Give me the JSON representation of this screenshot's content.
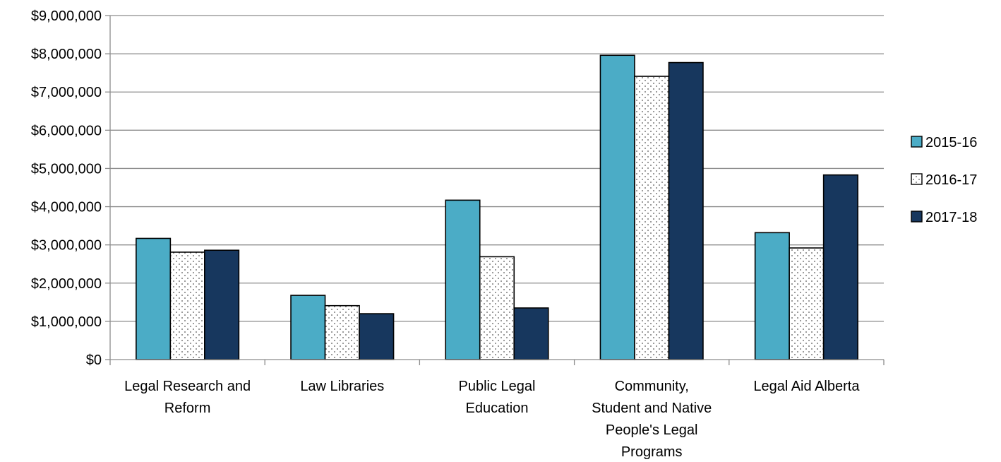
{
  "chart_data": {
    "type": "bar",
    "title": "",
    "xlabel": "",
    "ylabel": "",
    "ylim": [
      0,
      9000000
    ],
    "y_ticks": [
      0,
      1000000,
      2000000,
      3000000,
      4000000,
      5000000,
      6000000,
      7000000,
      8000000,
      9000000
    ],
    "y_tick_labels": [
      "$0",
      "$1,000,000",
      "$2,000,000",
      "$3,000,000",
      "$4,000,000",
      "$5,000,000",
      "$6,000,000",
      "$7,000,000",
      "$8,000,000",
      "$9,000,000"
    ],
    "grid": true,
    "legend_position": "right",
    "categories": [
      "Legal Research and Reform",
      "Law Libraries",
      "Public Legal Education",
      "Community, Student and Native People's Legal Programs",
      "Legal Aid Alberta"
    ],
    "category_label_lines": [
      [
        "Legal Research and",
        "Reform"
      ],
      [
        "Law Libraries"
      ],
      [
        "Public Legal",
        "Education"
      ],
      [
        "Community,",
        "Student and Native",
        "People's Legal",
        "Programs"
      ],
      [
        "Legal Aid Alberta"
      ]
    ],
    "series": [
      {
        "name": "2015-16",
        "color": "#4bacc6",
        "pattern": "solid",
        "values": [
          3170000,
          1680000,
          4170000,
          7960000,
          3320000
        ]
      },
      {
        "name": "2016-17",
        "color": "#ffffff",
        "pattern": "dotted",
        "values": [
          2810000,
          1410000,
          2690000,
          7410000,
          2920000
        ]
      },
      {
        "name": "2017-18",
        "color": "#17375e",
        "pattern": "solid",
        "values": [
          2860000,
          1200000,
          1350000,
          7770000,
          4830000
        ]
      }
    ]
  }
}
